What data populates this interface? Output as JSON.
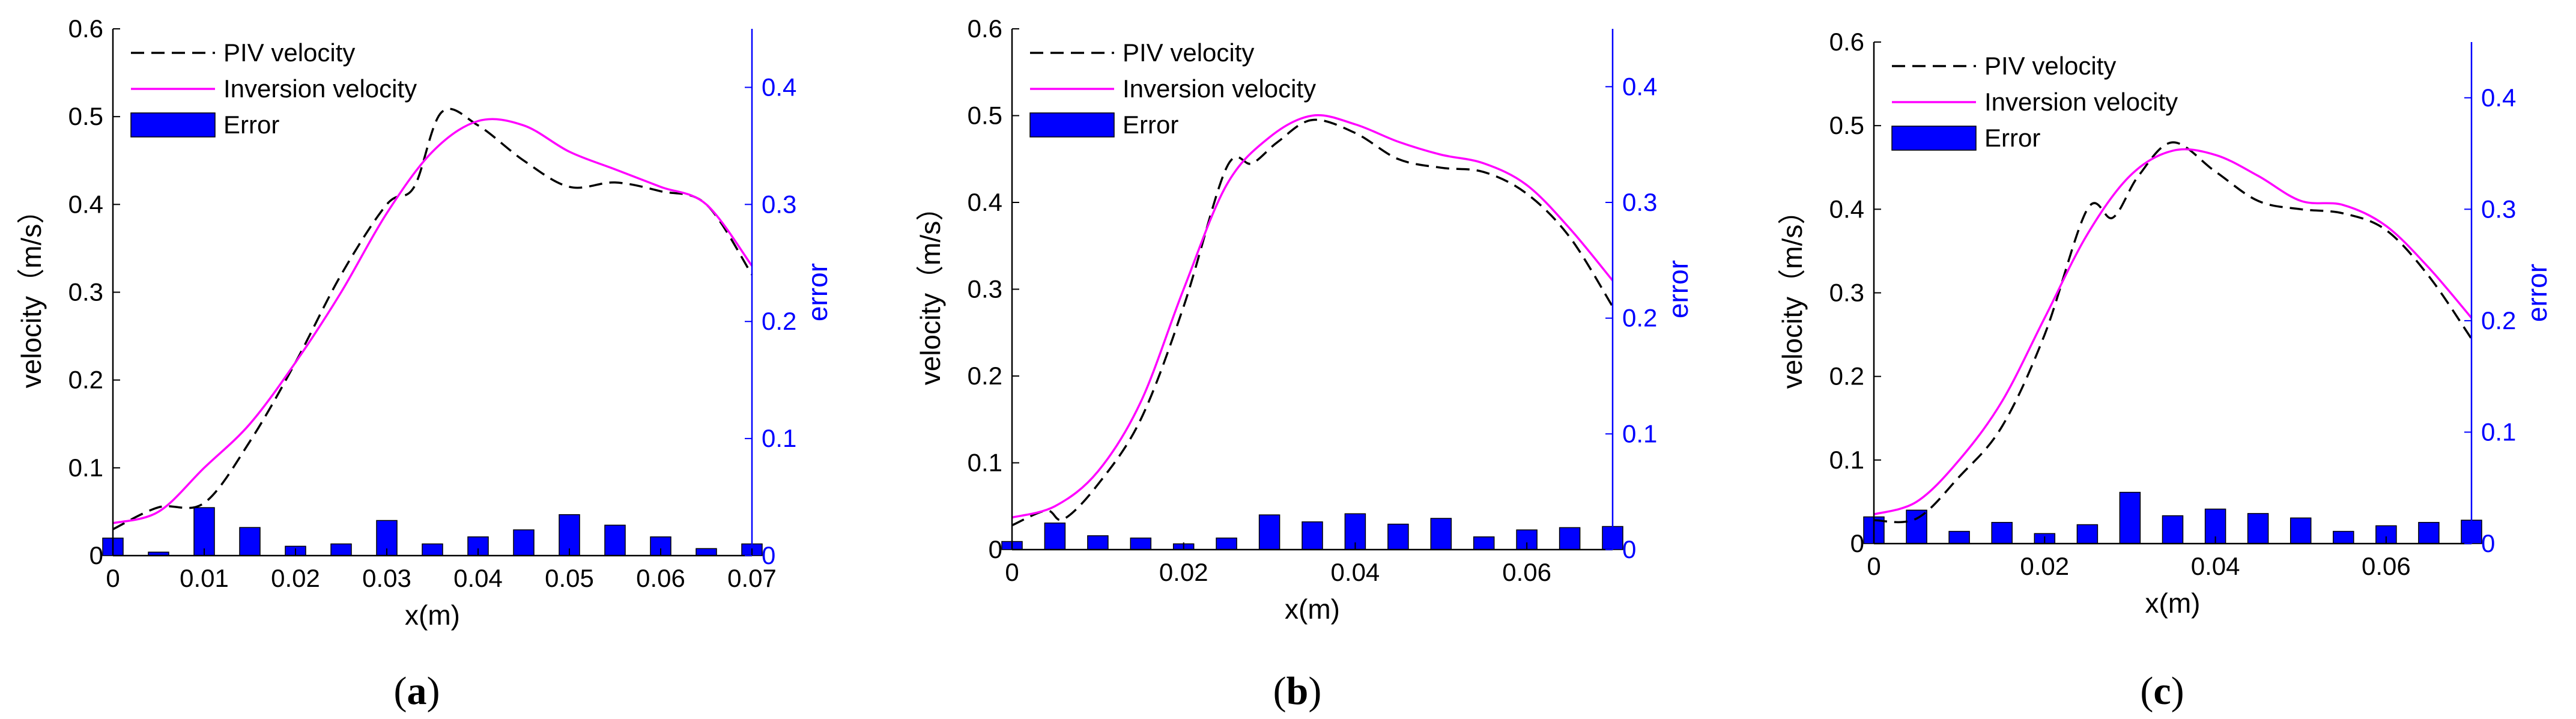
{
  "colors": {
    "piv": "#000000",
    "inversion": "#ff00ff",
    "error_bar": "#0000ff",
    "right_axis": "#0000ff",
    "left_axis": "#000000"
  },
  "chart_data": [
    {
      "type": "line",
      "panel_label_prefix": "(",
      "panel_letter": "a",
      "panel_label_suffix": ")",
      "xlabel": "x(m)",
      "ylabel": "velocity（m/s）",
      "ylabel_right": "error",
      "xlim": [
        0,
        0.07
      ],
      "ylim": [
        0,
        0.6
      ],
      "ylim_right": [
        0,
        0.45
      ],
      "xticks": [
        0,
        0.01,
        0.02,
        0.03,
        0.04,
        0.05,
        0.06,
        0.07
      ],
      "xtick_labels": [
        "0",
        "0.01",
        "0.02",
        "0.03",
        "0.04",
        "0.05",
        "0.06",
        "0.07"
      ],
      "yticks": [
        0,
        0.1,
        0.2,
        0.3,
        0.4,
        0.5,
        0.6
      ],
      "ytick_labels": [
        "0",
        "0.1",
        "0.2",
        "0.3",
        "0.4",
        "0.5",
        "0.6"
      ],
      "yticks_right": [
        0,
        0.1,
        0.2,
        0.3,
        0.4
      ],
      "ytick_labels_right": [
        "0",
        "0.1",
        "0.2",
        "0.3",
        "0.4"
      ],
      "legend": {
        "placement": "top-left",
        "entries": [
          "PIV velocity",
          "Inversion velocity",
          "Error"
        ]
      },
      "series": [
        {
          "name": "PIV velocity",
          "style": "dashed",
          "x": [
            0,
            0.005,
            0.01,
            0.015,
            0.02,
            0.025,
            0.03,
            0.033,
            0.036,
            0.04,
            0.045,
            0.05,
            0.055,
            0.06,
            0.065,
            0.07
          ],
          "y": [
            0.03,
            0.055,
            0.06,
            0.13,
            0.22,
            0.32,
            0.4,
            0.42,
            0.505,
            0.49,
            0.45,
            0.42,
            0.425,
            0.415,
            0.4,
            0.32
          ]
        },
        {
          "name": "Inversion velocity",
          "style": "solid",
          "x": [
            0,
            0.005,
            0.01,
            0.015,
            0.02,
            0.025,
            0.03,
            0.035,
            0.04,
            0.045,
            0.05,
            0.055,
            0.06,
            0.065,
            0.07
          ],
          "y": [
            0.037,
            0.05,
            0.1,
            0.15,
            0.22,
            0.3,
            0.39,
            0.46,
            0.495,
            0.49,
            0.46,
            0.44,
            0.42,
            0.4,
            0.33
          ]
        },
        {
          "name": "Error",
          "style": "bar",
          "axis": "right",
          "x": [
            0,
            0.005,
            0.01,
            0.015,
            0.02,
            0.025,
            0.03,
            0.035,
            0.04,
            0.045,
            0.05,
            0.055,
            0.06,
            0.065,
            0.07
          ],
          "y": [
            0.015,
            0.003,
            0.041,
            0.024,
            0.008,
            0.01,
            0.03,
            0.01,
            0.016,
            0.022,
            0.035,
            0.026,
            0.016,
            0.006,
            0.01
          ]
        }
      ]
    },
    {
      "type": "line",
      "panel_label_prefix": "(",
      "panel_letter": "b",
      "panel_label_suffix": ")",
      "xlabel": "x(m)",
      "ylabel": "velocity（m/s）",
      "ylabel_right": "error",
      "xlim": [
        0,
        0.07
      ],
      "ylim": [
        0,
        0.6
      ],
      "ylim_right": [
        0,
        0.45
      ],
      "xticks": [
        0,
        0.02,
        0.04,
        0.06
      ],
      "xtick_labels": [
        "0",
        "0.02",
        "0.04",
        "0.06"
      ],
      "yticks": [
        0,
        0.1,
        0.2,
        0.3,
        0.4,
        0.5,
        0.6
      ],
      "ytick_labels": [
        "0",
        "0.1",
        "0.2",
        "0.3",
        "0.4",
        "0.5",
        "0.6"
      ],
      "yticks_right": [
        0,
        0.1,
        0.2,
        0.3,
        0.4
      ],
      "ytick_labels_right": [
        "0",
        "0.1",
        "0.2",
        "0.3",
        "0.4"
      ],
      "legend": {
        "placement": "top-left",
        "entries": [
          "PIV velocity",
          "Inversion velocity",
          "Error"
        ]
      },
      "series": [
        {
          "name": "PIV velocity",
          "style": "dashed",
          "x": [
            0,
            0.004,
            0.006,
            0.01,
            0.015,
            0.02,
            0.025,
            0.028,
            0.031,
            0.035,
            0.04,
            0.045,
            0.05,
            0.055,
            0.06,
            0.065,
            0.07
          ],
          "y": [
            0.028,
            0.045,
            0.035,
            0.075,
            0.15,
            0.28,
            0.44,
            0.445,
            0.47,
            0.495,
            0.48,
            0.45,
            0.44,
            0.435,
            0.41,
            0.36,
            0.28
          ]
        },
        {
          "name": "Inversion velocity",
          "style": "solid",
          "x": [
            0,
            0.005,
            0.01,
            0.015,
            0.02,
            0.025,
            0.03,
            0.035,
            0.04,
            0.045,
            0.05,
            0.055,
            0.06,
            0.065,
            0.07
          ],
          "y": [
            0.037,
            0.05,
            0.09,
            0.17,
            0.3,
            0.42,
            0.475,
            0.5,
            0.49,
            0.47,
            0.455,
            0.445,
            0.42,
            0.37,
            0.31
          ]
        },
        {
          "name": "Error",
          "style": "bar",
          "axis": "right",
          "x": [
            0,
            0.005,
            0.01,
            0.015,
            0.02,
            0.025,
            0.03,
            0.035,
            0.04,
            0.045,
            0.05,
            0.055,
            0.06,
            0.065,
            0.07
          ],
          "y": [
            0.007,
            0.023,
            0.012,
            0.01,
            0.005,
            0.01,
            0.03,
            0.024,
            0.031,
            0.022,
            0.027,
            0.011,
            0.017,
            0.019,
            0.02
          ]
        }
      ]
    },
    {
      "type": "line",
      "panel_label_prefix": "(",
      "panel_letter": "c",
      "panel_label_suffix": ")",
      "xlabel": "x(m)",
      "ylabel": "velocity（m/s）",
      "ylabel_right": "error",
      "xlim": [
        0,
        0.07
      ],
      "ylim": [
        0,
        0.6
      ],
      "ylim_right": [
        0,
        0.45
      ],
      "xticks": [
        0,
        0.02,
        0.04,
        0.06
      ],
      "xtick_labels": [
        "0",
        "0.02",
        "0.04",
        "0.06"
      ],
      "yticks": [
        0,
        0.1,
        0.2,
        0.3,
        0.4,
        0.5,
        0.6
      ],
      "ytick_labels": [
        "0",
        "0.1",
        "0.2",
        "0.3",
        "0.4",
        "0.5",
        "0.6"
      ],
      "yticks_right": [
        0,
        0.1,
        0.2,
        0.3,
        0.4
      ],
      "ytick_labels_right": [
        "0",
        "0.1",
        "0.2",
        "0.3",
        "0.4"
      ],
      "legend": {
        "placement": "top-left",
        "entries": [
          "PIV velocity",
          "Inversion velocity",
          "Error"
        ]
      },
      "series": [
        {
          "name": "PIV velocity",
          "style": "dashed",
          "x": [
            0,
            0.005,
            0.01,
            0.015,
            0.02,
            0.025,
            0.028,
            0.031,
            0.035,
            0.04,
            0.045,
            0.05,
            0.055,
            0.06,
            0.065,
            0.07
          ],
          "y": [
            0.028,
            0.03,
            0.08,
            0.14,
            0.25,
            0.4,
            0.39,
            0.44,
            0.48,
            0.445,
            0.41,
            0.4,
            0.395,
            0.375,
            0.32,
            0.245
          ]
        },
        {
          "name": "Inversion velocity",
          "style": "solid",
          "x": [
            0,
            0.005,
            0.01,
            0.015,
            0.02,
            0.025,
            0.03,
            0.035,
            0.04,
            0.045,
            0.05,
            0.055,
            0.06,
            0.065,
            0.07
          ],
          "y": [
            0.035,
            0.05,
            0.1,
            0.17,
            0.27,
            0.37,
            0.44,
            0.47,
            0.465,
            0.44,
            0.41,
            0.405,
            0.38,
            0.33,
            0.27
          ]
        },
        {
          "name": "Error",
          "style": "bar",
          "axis": "right",
          "x": [
            0,
            0.005,
            0.01,
            0.015,
            0.02,
            0.025,
            0.03,
            0.035,
            0.04,
            0.045,
            0.05,
            0.055,
            0.06,
            0.065,
            0.07
          ],
          "y": [
            0.024,
            0.03,
            0.011,
            0.019,
            0.009,
            0.017,
            0.046,
            0.025,
            0.031,
            0.027,
            0.023,
            0.011,
            0.016,
            0.019,
            0.021
          ]
        }
      ]
    }
  ]
}
